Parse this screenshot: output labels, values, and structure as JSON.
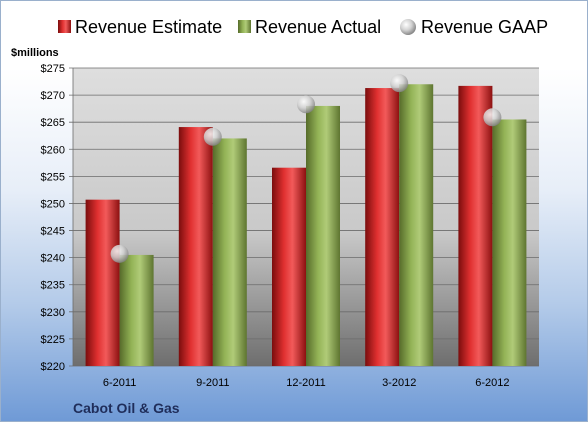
{
  "chart_data": {
    "type": "bar",
    "categories": [
      "6-2011",
      "9-2011",
      "12-2011",
      "3-2012",
      "6-2012"
    ],
    "series": [
      {
        "name": "Revenue Estimate",
        "kind": "bar",
        "color": "#d42a2a",
        "values": [
          250.7,
          264.1,
          256.6,
          271.3,
          271.7
        ]
      },
      {
        "name": "Revenue Actual",
        "kind": "bar",
        "color": "#8fae4f",
        "values": [
          240.5,
          262.0,
          268.0,
          272.0,
          265.5
        ]
      },
      {
        "name": "Revenue GAAP",
        "kind": "marker",
        "color": "#c8c8c8",
        "values": [
          240.7,
          262.3,
          268.3,
          272.2,
          265.9
        ]
      }
    ],
    "ylabel": "$millions",
    "ylim": [
      220,
      275
    ],
    "ytick_step": 5,
    "legend_position": "top",
    "grid": true,
    "footer": "Cabot Oil & Gas"
  }
}
